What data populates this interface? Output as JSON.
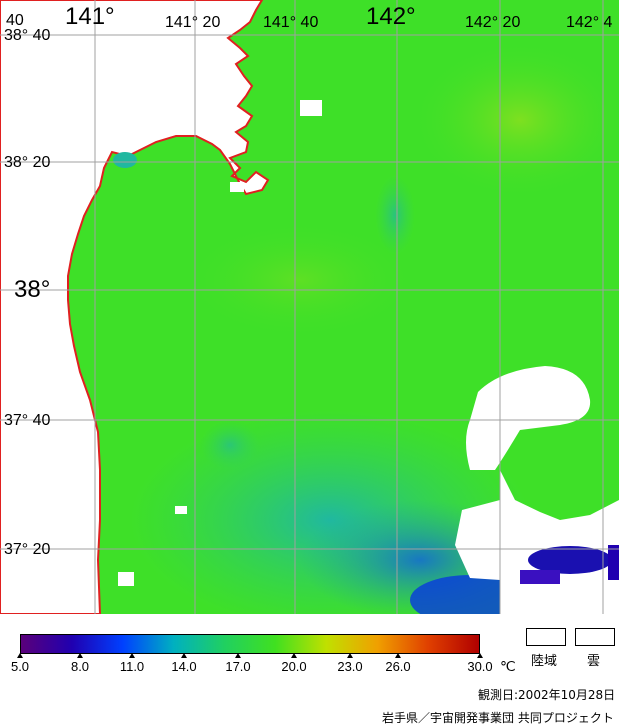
{
  "map": {
    "lon_labels": [
      "141°",
      "141° 20",
      "141° 40",
      "142°",
      "142° 20",
      "142° 4"
    ],
    "lat_labels": [
      "38° 40",
      "38° 20",
      "38°",
      "37° 40",
      "37° 20"
    ],
    "corner_label": "40"
  },
  "colorbar": {
    "ticks": [
      "5.0",
      "8.0",
      "11.0",
      "14.0",
      "17.0",
      "20.0",
      "23.0",
      "26.0",
      "30.0"
    ],
    "unit": "℃",
    "gradient_colors": [
      "#5a007a",
      "#2000b0",
      "#0040ff",
      "#00b0c0",
      "#20d060",
      "#40e020",
      "#c0e000",
      "#f0a000",
      "#e04000",
      "#b00000"
    ]
  },
  "legend": {
    "land_label": "陸域",
    "cloud_label": "雲"
  },
  "footer": {
    "observation_date": "観測日:2002年10月28日",
    "credit": "岩手県／宇宙開発事業団  共同プロジェクト"
  }
}
